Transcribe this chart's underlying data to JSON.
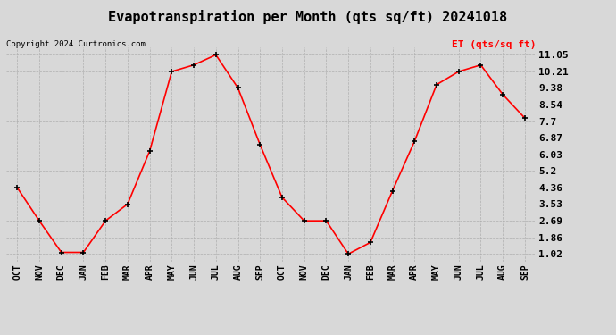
{
  "title": "Evapotranspiration per Month (qts sq/ft) 20241018",
  "copyright": "Copyright 2024 Curtronics.com",
  "legend_label": "ET (qts/sq ft)",
  "categories": [
    "OCT",
    "NOV",
    "DEC",
    "JAN",
    "FEB",
    "MAR",
    "APR",
    "MAY",
    "JUN",
    "JUL",
    "AUG",
    "SEP",
    "OCT",
    "NOV",
    "DEC",
    "JAN",
    "FEB",
    "MAR",
    "APR",
    "MAY",
    "JUN",
    "JUL",
    "AUG",
    "SEP"
  ],
  "values": [
    4.36,
    2.69,
    1.1,
    1.1,
    2.69,
    3.53,
    6.2,
    10.21,
    10.54,
    11.05,
    9.38,
    6.53,
    3.87,
    2.69,
    2.69,
    1.02,
    1.6,
    4.2,
    6.7,
    9.55,
    10.21,
    10.54,
    9.05,
    7.86
  ],
  "line_color": "red",
  "marker": "+",
  "marker_color": "black",
  "marker_size": 5,
  "marker_linewidth": 1.2,
  "line_width": 1.2,
  "grid_color": "#aaaaaa",
  "background_color": "#d8d8d8",
  "yticks": [
    1.02,
    1.86,
    2.69,
    3.53,
    4.36,
    5.2,
    6.03,
    6.87,
    7.7,
    8.54,
    9.38,
    10.21,
    11.05
  ],
  "ylim": [
    0.65,
    11.45
  ],
  "title_fontsize": 11,
  "copyright_fontsize": 6.5,
  "legend_fontsize": 8,
  "ytick_fontsize": 8,
  "xtick_fontsize": 7,
  "legend_color": "red"
}
